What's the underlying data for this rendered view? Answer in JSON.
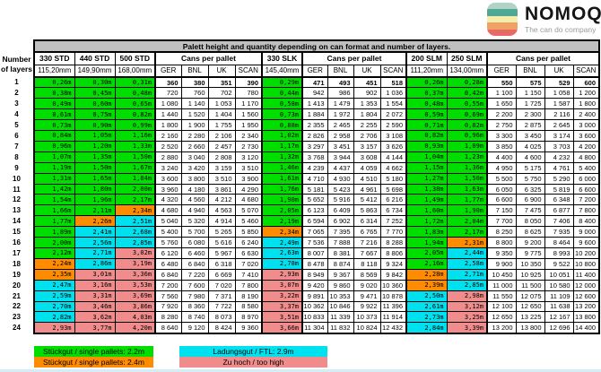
{
  "logo": {
    "name": "NOMOQ",
    "tagline": "The can do company",
    "can_stripes": [
      "#AFD3C6",
      "#4FA893",
      "#F4EDAE",
      "#F0A265",
      "#E86A67"
    ]
  },
  "colors": {
    "green": "#00DE00",
    "orange": "#FF8C00",
    "cyan": "#00E1F0",
    "pink": "#F18C8C",
    "title_bg": "#C0C0C0"
  },
  "table": {
    "title": "Palett height and quantity depending on can format and number of layers.",
    "row_header_line1": "Number",
    "row_header_line2": "of layers",
    "cans_header": "Cans per pallet",
    "regions": [
      "GER",
      "BNL",
      "UK",
      "SCAN"
    ],
    "layers": [
      1,
      2,
      3,
      4,
      5,
      6,
      7,
      8,
      9,
      10,
      11,
      12,
      13,
      14,
      15,
      16,
      17,
      18,
      19,
      20,
      21,
      22,
      23,
      24
    ],
    "column_order": [
      {
        "type": "height",
        "index": 0,
        "thick_left": true
      },
      {
        "type": "height",
        "index": 1,
        "thick_left": false
      },
      {
        "type": "height",
        "index": 2,
        "thick_left": false
      },
      {
        "type": "cans",
        "index": 0,
        "thick_left": true
      },
      {
        "type": "height",
        "index": 3,
        "thick_left": true
      },
      {
        "type": "cans",
        "index": 1,
        "thick_left": true
      },
      {
        "type": "height",
        "index": 4,
        "thick_left": true
      },
      {
        "type": "height",
        "index": 5,
        "thick_left": false
      },
      {
        "type": "cans",
        "index": 2,
        "thick_left": true
      }
    ],
    "height_columns": [
      {
        "format": "330 STD",
        "size": "115,20mm",
        "values": [
          "0,26m",
          "0,38m",
          "0,49m",
          "0,61m",
          "0,73m",
          "0,84m",
          "0,96m",
          "1,07m",
          "1,19m",
          "1,31m",
          "1,42m",
          "1,54m",
          "1,66m",
          "1,77m",
          "1,89m",
          "2,00m",
          "2,12m",
          "2,24m",
          "2,35m",
          "2,47m",
          "2,59m",
          "2,70m",
          "2,82m",
          "2,93m"
        ],
        "colors": "gggggggggggggggggooccccp"
      },
      {
        "format": "440 STD",
        "size": "149,90mm",
        "values": [
          "0,30m",
          "0,45m",
          "0,60m",
          "0,75m",
          "0,90m",
          "1,05m",
          "1,20m",
          "1,35m",
          "1,50m",
          "1,65m",
          "1,80m",
          "1,96m",
          "2,11m",
          "2,26m",
          "2,41m",
          "2,56m",
          "2,71m",
          "2,86m",
          "3,01m",
          "3,16m",
          "3,31m",
          "3,46m",
          "3,62m",
          "3,77m"
        ],
        "colors": "gggggggggggggoccccpppppp"
      },
      {
        "format": "500 STD",
        "size": "168,00mm",
        "values": [
          "0,31m",
          "0,48m",
          "0,65m",
          "0,82m",
          "0,99m",
          "1,16m",
          "1,33m",
          "1,50m",
          "1,67m",
          "1,84m",
          "2,00m",
          "2,17m",
          "2,34m",
          "2,51m",
          "2,68m",
          "2,85m",
          "3,02m",
          "3,19m",
          "3,36m",
          "3,53m",
          "3,69m",
          "3,86m",
          "4,03m",
          "4,20m"
        ],
        "colors": "ggggggggggggocccpppppppp"
      },
      {
        "format": "330 SLK",
        "size": "145,40mm",
        "values": [
          "0,29m",
          "0,44m",
          "0,58m",
          "0,73m",
          "0,88m",
          "1,02m",
          "1,17m",
          "1,32m",
          "1,46m",
          "1,61m",
          "1,76m",
          "1,90m",
          "2,05m",
          "2,19m",
          "2,34m",
          "2,49m",
          "2,63m",
          "2,78m",
          "2,93m",
          "3,07m",
          "3,22m",
          "3,37m",
          "3,51m",
          "3,66m"
        ],
        "colors": "ggggggggggggggocccpppppp"
      },
      {
        "format": "200 SLM",
        "size": "111,20mm",
        "values": [
          "0,26m",
          "0,37m",
          "0,48m",
          "0,59m",
          "0,71m",
          "0,82m",
          "0,93m",
          "1,04m",
          "1,15m",
          "1,27m",
          "1,38m",
          "1,49m",
          "1,60m",
          "1,72m",
          "1,83m",
          "1,94m",
          "2,05m",
          "2,16m",
          "2,28m",
          "2,39m",
          "2,50m",
          "2,61m",
          "2,73m",
          "2,84m"
        ],
        "colors": "ggggggggggggggggggoocccc"
      },
      {
        "format": "250 SLM",
        "size": "134,00mm",
        "values": [
          "0,28m",
          "0,42m",
          "0,55m",
          "0,69m",
          "0,82m",
          "0,96m",
          "1,09m",
          "1,23m",
          "1,36m",
          "1,50m",
          "1,63m",
          "1,77m",
          "1,90m",
          "2,04m",
          "2,17m",
          "2,31m",
          "2,44m",
          "2,58m",
          "2,71m",
          "2,85m",
          "2,98m",
          "3,12m",
          "3,25m",
          "3,39m"
        ],
        "colors": "gggggggggggggggoccccpppp"
      }
    ],
    "cans_groups": [
      {
        "regions": {
          "GER": [
            360,
            720,
            1080,
            1440,
            1800,
            2160,
            2520,
            2880,
            3240,
            3600,
            3960,
            4320,
            4680,
            5040,
            5400,
            5760,
            6120,
            6480,
            6840,
            7200,
            7560,
            7920,
            8280,
            8640
          ],
          "BNL": [
            380,
            760,
            1140,
            1520,
            1900,
            2280,
            2660,
            3040,
            3420,
            3800,
            4180,
            4560,
            4940,
            5320,
            5700,
            6080,
            6460,
            6840,
            7220,
            7600,
            7980,
            8360,
            8740,
            9120
          ],
          "UK": [
            351,
            702,
            1053,
            1404,
            1755,
            2106,
            2457,
            2808,
            3159,
            3510,
            3861,
            4212,
            4563,
            4914,
            5265,
            5616,
            5967,
            6318,
            6669,
            7020,
            7371,
            7722,
            8073,
            8424
          ],
          "SCAN": [
            390,
            780,
            1170,
            1560,
            1950,
            2340,
            2730,
            3120,
            3510,
            3900,
            4290,
            4680,
            5070,
            5460,
            5850,
            6240,
            6630,
            7020,
            7410,
            7800,
            8190,
            8580,
            8970,
            9360
          ]
        }
      },
      {
        "regions": {
          "GER": [
            471,
            942,
            1413,
            1884,
            2355,
            2826,
            3297,
            3768,
            4239,
            4710,
            5181,
            5652,
            6123,
            6594,
            7065,
            7536,
            8007,
            8478,
            8949,
            9420,
            9891,
            10362,
            10833,
            11304
          ],
          "BNL": [
            493,
            986,
            1479,
            1972,
            2465,
            2958,
            3451,
            3944,
            4437,
            4930,
            5423,
            5916,
            6409,
            6902,
            7395,
            7888,
            8381,
            8874,
            9367,
            9860,
            10353,
            10846,
            11339,
            11832
          ],
          "UK": [
            451,
            902,
            1353,
            1804,
            2255,
            2706,
            3157,
            3608,
            4059,
            4510,
            4961,
            5412,
            5863,
            6314,
            6765,
            7216,
            7667,
            8118,
            8569,
            9020,
            9471,
            9922,
            10373,
            10824
          ],
          "SCAN": [
            518,
            1036,
            1554,
            2072,
            2590,
            3108,
            3626,
            4144,
            4662,
            5180,
            5698,
            6216,
            6734,
            7252,
            7770,
            8288,
            8806,
            9324,
            9842,
            10360,
            10878,
            11396,
            11914,
            12432
          ]
        }
      },
      {
        "regions": {
          "GER": [
            550,
            1100,
            1650,
            2200,
            2750,
            3300,
            3850,
            4400,
            4950,
            5500,
            6050,
            6600,
            7150,
            7700,
            8250,
            8800,
            9350,
            9900,
            10450,
            11000,
            11550,
            12100,
            12650,
            13200
          ],
          "BNL": [
            575,
            1150,
            1725,
            2300,
            2875,
            3450,
            4025,
            4600,
            5175,
            5750,
            6325,
            6900,
            7475,
            8050,
            8625,
            9200,
            9775,
            10350,
            10925,
            11500,
            12075,
            12650,
            13225,
            13800
          ],
          "UK": [
            529,
            1058,
            1587,
            2116,
            2645,
            3174,
            3703,
            4232,
            4761,
            5290,
            5819,
            6348,
            6877,
            7406,
            7935,
            8464,
            8993,
            9522,
            10051,
            10580,
            11109,
            11638,
            12167,
            12696
          ],
          "SCAN": [
            600,
            1200,
            1800,
            2400,
            3000,
            3600,
            4200,
            4800,
            5400,
            6000,
            6600,
            7200,
            7800,
            8400,
            9000,
            9600,
            10200,
            10800,
            11400,
            12000,
            12600,
            13200,
            13800,
            14400
          ]
        }
      }
    ]
  },
  "legend": [
    {
      "color": "green",
      "label": "Stückgut / single pallets: 2.2m"
    },
    {
      "color": "orange",
      "label": "Stückgut / single pallets: 2.4m"
    },
    {
      "color": "cyan",
      "label": "Ladungsgut / FTL: 2.9m"
    },
    {
      "color": "pink",
      "label": "Zu hoch / too high"
    }
  ]
}
